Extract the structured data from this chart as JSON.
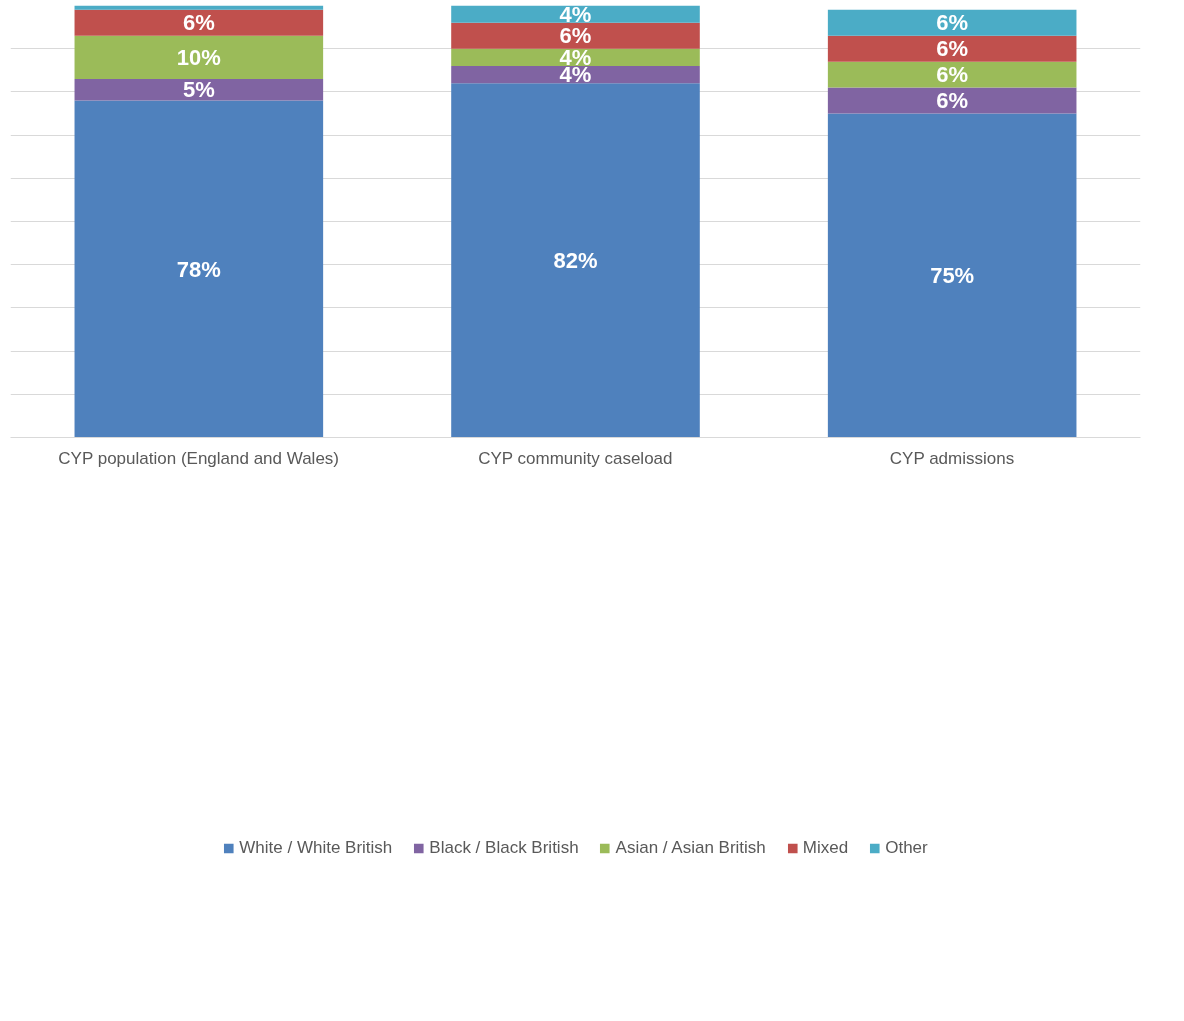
{
  "chart_data": {
    "type": "bar",
    "stacked": true,
    "categories": [
      "CYP population (England and Wales)",
      "CYP community caseload",
      "CYP admissions"
    ],
    "series": [
      {
        "name": "White / White British",
        "color": "#4f81bd",
        "values": [
          78,
          82,
          75
        ],
        "value_labels": [
          "78%",
          "82%",
          "75%"
        ]
      },
      {
        "name": "Black / Black British",
        "color": "#8064a2",
        "values": [
          5,
          4,
          6
        ],
        "value_labels": [
          "5%",
          "4%",
          "6%"
        ]
      },
      {
        "name": "Asian / Asian British",
        "color": "#9bbb59",
        "values": [
          10,
          4,
          6
        ],
        "value_labels": [
          "10%",
          "4%",
          "6%"
        ]
      },
      {
        "name": "Mixed",
        "color": "#c0504d",
        "values": [
          6,
          6,
          6
        ],
        "value_labels": [
          "6%",
          "6%",
          "6%"
        ]
      },
      {
        "name": "Other",
        "color": "#4bacc6",
        "values": [
          1,
          4,
          6
        ],
        "value_labels": [
          null,
          "4%",
          "6%"
        ]
      }
    ],
    "ylim": [
      0,
      100
    ],
    "yticks": [
      {
        "value": 0,
        "label": null
      },
      {
        "value": 10,
        "label": null
      },
      {
        "value": 20,
        "label": null
      },
      {
        "value": 30,
        "label": null
      },
      {
        "value": 40,
        "label": null
      },
      {
        "value": 50,
        "label": null
      },
      {
        "value": 60,
        "label": null
      },
      {
        "value": 70,
        "label": null
      },
      {
        "value": 80,
        "label": null
      },
      {
        "value": 90,
        "label": null
      }
    ],
    "tick_labels": "x",
    "grid": "y",
    "legend": "bottom"
  }
}
